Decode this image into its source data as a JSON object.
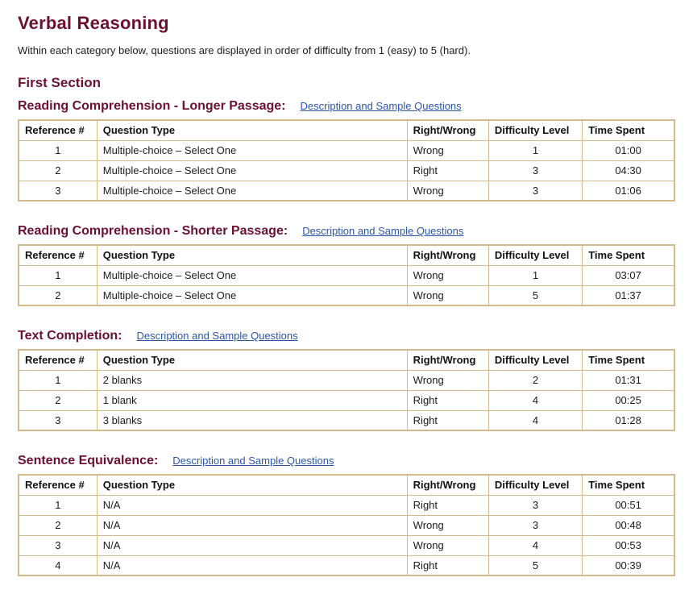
{
  "page": {
    "title": "Verbal Reasoning",
    "subtitle": "Within each category below, questions are displayed in order of difficulty from 1 (easy) to 5 (hard).",
    "section_title": "First Section"
  },
  "colors": {
    "heading_maroon": "#6c1030",
    "link_blue": "#2b55a8",
    "table_border_tan": "#d2ba8c",
    "body_text": "#1b1b1b"
  },
  "table_headers": [
    "Reference #",
    "Question Type",
    "Right/Wrong",
    "Difficulty Level",
    "Time Spent"
  ],
  "categories": [
    {
      "heading": "Reading Comprehension - Longer Passage:",
      "link": "Description and Sample Questions",
      "rows": [
        [
          "1",
          "Multiple-choice – Select One",
          "Wrong",
          "1",
          "01:00"
        ],
        [
          "2",
          "Multiple-choice – Select One",
          "Right",
          "3",
          "04:30"
        ],
        [
          "3",
          "Multiple-choice – Select One",
          "Wrong",
          "3",
          "01:06"
        ]
      ]
    },
    {
      "heading": "Reading Comprehension - Shorter Passage:",
      "link": "Description and Sample Questions",
      "rows": [
        [
          "1",
          "Multiple-choice – Select One",
          "Wrong",
          "1",
          "03:07"
        ],
        [
          "2",
          "Multiple-choice – Select One",
          "Wrong",
          "5",
          "01:37"
        ]
      ]
    },
    {
      "heading": "Text Completion:",
      "link": "Description and Sample Questions",
      "rows": [
        [
          "1",
          "2 blanks",
          "Wrong",
          "2",
          "01:31"
        ],
        [
          "2",
          "1 blank",
          "Right",
          "4",
          "00:25"
        ],
        [
          "3",
          "3 blanks",
          "Right",
          "4",
          "01:28"
        ]
      ]
    },
    {
      "heading": "Sentence Equivalence:",
      "link": "Description and Sample Questions",
      "rows": [
        [
          "1",
          "N/A",
          "Right",
          "3",
          "00:51"
        ],
        [
          "2",
          "N/A",
          "Wrong",
          "3",
          "00:48"
        ],
        [
          "3",
          "N/A",
          "Wrong",
          "4",
          "00:53"
        ],
        [
          "4",
          "N/A",
          "Right",
          "5",
          "00:39"
        ]
      ]
    }
  ]
}
